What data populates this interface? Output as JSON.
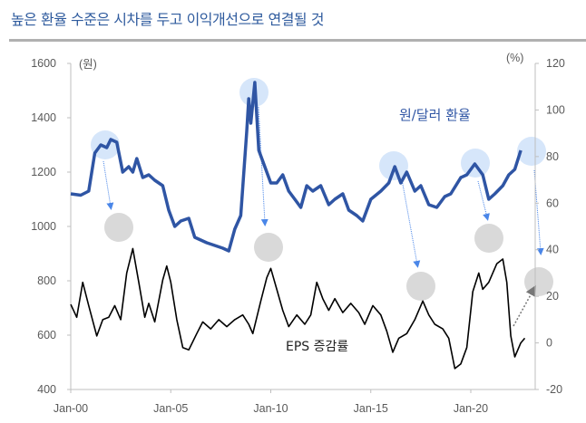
{
  "title": "높은 환율 수준은 시차를 두고 이익개선으로 연결될 것",
  "chart_data": {
    "type": "line",
    "title": "높은 환율 수준은 시차를 두고 이익개선으로 연결될 것",
    "left_axis": {
      "unit": "(원)",
      "ylim": [
        400,
        1600
      ],
      "ticks": [
        "400",
        "600",
        "800",
        "1000",
        "1200",
        "1400",
        "1600"
      ]
    },
    "right_axis": {
      "unit": "(%)",
      "ylim": [
        -20,
        120
      ],
      "ticks": [
        "-20",
        "0",
        "20",
        "40",
        "60",
        "80",
        "100",
        "120"
      ]
    },
    "x_ticks": [
      "Jan-00",
      "Jan-05",
      "Jan-10",
      "Jan-15",
      "Jan-20"
    ],
    "grid": false,
    "series": [
      {
        "name": "원/달러 환율",
        "axis": "left",
        "color": "#2f55a4",
        "x": [
          2000.0,
          2000.5,
          2000.9,
          2001.2,
          2001.5,
          2001.8,
          2002.0,
          2002.3,
          2002.6,
          2002.9,
          2003.1,
          2003.3,
          2003.6,
          2003.9,
          2004.2,
          2004.6,
          2004.9,
          2005.2,
          2005.5,
          2005.9,
          2006.2,
          2006.5,
          2006.8,
          2007.2,
          2007.6,
          2007.9,
          2008.2,
          2008.5,
          2008.8,
          2008.9,
          2009.0,
          2009.2,
          2009.4,
          2009.7,
          2010.0,
          2010.3,
          2010.6,
          2010.9,
          2011.2,
          2011.5,
          2011.8,
          2012.1,
          2012.5,
          2012.9,
          2013.2,
          2013.6,
          2013.9,
          2014.3,
          2014.6,
          2015.0,
          2015.5,
          2015.9,
          2016.2,
          2016.5,
          2016.8,
          2017.2,
          2017.5,
          2017.9,
          2018.3,
          2018.7,
          2019.0,
          2019.5,
          2019.8,
          2020.2,
          2020.6,
          2020.9,
          2021.2,
          2021.6,
          2021.9,
          2022.2,
          2022.5
        ],
        "values": [
          1120,
          1115,
          1130,
          1270,
          1300,
          1290,
          1320,
          1310,
          1200,
          1220,
          1200,
          1250,
          1180,
          1190,
          1170,
          1150,
          1060,
          1000,
          1020,
          1030,
          960,
          950,
          940,
          930,
          920,
          910,
          990,
          1040,
          1350,
          1470,
          1380,
          1530,
          1280,
          1220,
          1160,
          1160,
          1190,
          1130,
          1100,
          1070,
          1150,
          1130,
          1150,
          1080,
          1100,
          1120,
          1060,
          1040,
          1020,
          1100,
          1130,
          1160,
          1220,
          1160,
          1200,
          1130,
          1150,
          1080,
          1070,
          1110,
          1120,
          1180,
          1190,
          1230,
          1190,
          1100,
          1120,
          1150,
          1190,
          1210,
          1280
        ]
      },
      {
        "name": "EPS 증감률",
        "axis": "right",
        "color": "#000000",
        "x": [
          2000.0,
          2000.3,
          2000.6,
          2000.9,
          2001.3,
          2001.6,
          2001.9,
          2002.2,
          2002.5,
          2002.8,
          2003.1,
          2003.4,
          2003.7,
          2003.9,
          2004.2,
          2004.6,
          2004.8,
          2005.0,
          2005.3,
          2005.6,
          2005.9,
          2006.3,
          2006.6,
          2007.0,
          2007.4,
          2007.8,
          2008.2,
          2008.6,
          2008.9,
          2009.1,
          2009.5,
          2009.8,
          2010.0,
          2010.3,
          2010.6,
          2010.9,
          2011.3,
          2011.7,
          2012.0,
          2012.3,
          2012.6,
          2012.9,
          2013.2,
          2013.6,
          2014.0,
          2014.4,
          2014.7,
          2015.1,
          2015.5,
          2015.8,
          2016.1,
          2016.4,
          2016.8,
          2017.2,
          2017.6,
          2017.9,
          2018.2,
          2018.6,
          2018.9,
          2019.2,
          2019.5,
          2019.8,
          2020.1,
          2020.4,
          2020.6,
          2020.9,
          2021.3,
          2021.6,
          2021.8,
          2022.0,
          2022.2,
          2022.5,
          2022.7
        ],
        "values": [
          16.5,
          11,
          26,
          16,
          3,
          10,
          11,
          16,
          10,
          30,
          40.5,
          26,
          11,
          17,
          9,
          27,
          33,
          26,
          10,
          -2,
          -3,
          4,
          9,
          6,
          10,
          7,
          10,
          12,
          8,
          4,
          18,
          28,
          32,
          23,
          14,
          7,
          12,
          8,
          12,
          26,
          19,
          14,
          19,
          13,
          17,
          13,
          8,
          16,
          12,
          5,
          -4,
          2,
          4,
          10,
          18,
          12,
          8,
          6,
          2,
          -11,
          -9,
          -2,
          22,
          30,
          23,
          26,
          34,
          36,
          26,
          3,
          -6,
          0,
          2
        ]
      }
    ]
  }
}
